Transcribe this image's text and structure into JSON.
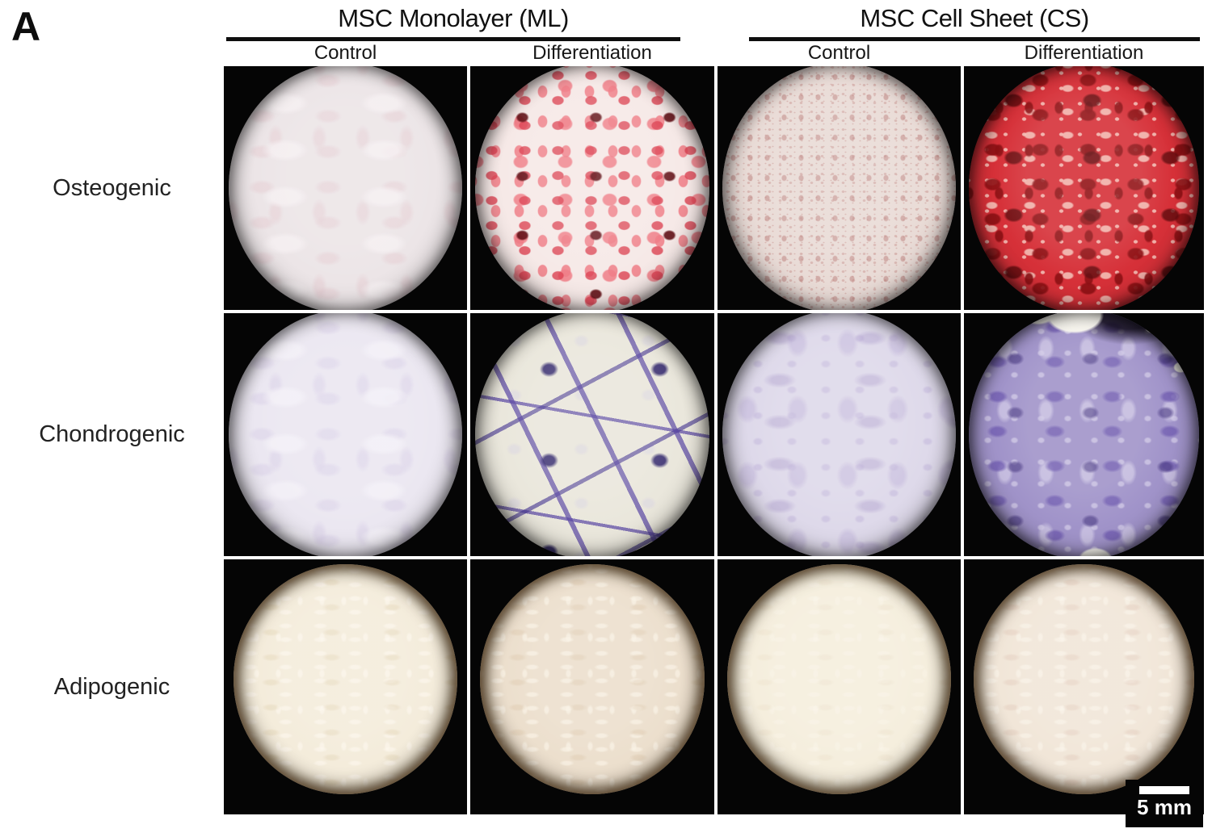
{
  "figure": {
    "panel_label": "A",
    "groups": [
      {
        "title": "MSC Monolayer (ML)",
        "sub": [
          "Control",
          "Differentiation"
        ]
      },
      {
        "title": "MSC Cell Sheet (CS)",
        "sub": [
          "Control",
          "Differentiation"
        ]
      }
    ],
    "rows": [
      {
        "label": "Osteogenic",
        "wells": [
          {
            "id": "osteogenic-ml-control",
            "colors": {
              "base": "#ece5e7",
              "t1": "#e4c9cf73",
              "t2": "#f6f0f2cc",
              "rim": "#00000073",
              "rim2": "#00000033"
            }
          },
          {
            "id": "osteogenic-ml-differentiation",
            "colors": {
              "base": "#f6e9e7",
              "t1": "#ef7c86d9",
              "t2": "#dc4151cc",
              "t3": "#611016e6",
              "rim": "#00000073",
              "rim2": "#00000033"
            }
          },
          {
            "id": "osteogenic-cs-control",
            "colors": {
              "base": "#e9dbd6",
              "t1": "#d2a9a4b3",
              "t2": "#bd837f8c",
              "rim": "#00000073",
              "rim2": "#00000033"
            }
          },
          {
            "id": "osteogenic-cs-differentiation",
            "colors": {
              "base": "#d63038",
              "t1": "#f3bcb4e6",
              "t2": "#8c1014e6",
              "t3": "#5e0a0dcc",
              "rim": "#00000080",
              "rim2": "#00000040"
            }
          }
        ]
      },
      {
        "label": "Chondrogenic",
        "wells": [
          {
            "id": "chondrogenic-ml-control",
            "colors": {
              "base": "#ebe7f1",
              "t1": "#d6cce673",
              "t2": "#f4f1f8cc",
              "rim": "#00000073",
              "rim2": "#00000033"
            }
          },
          {
            "id": "chondrogenic-ml-differentiation",
            "colors": {
              "base": "#eae7dc",
              "t1": "#d5cfe366",
              "t2": "#2b2068d9",
              "s1": "#5946a3b3",
              "s2": "#4434919e",
              "rim": "#00000073",
              "rim2": "#00000033"
            }
          },
          {
            "id": "chondrogenic-cs-control",
            "colors": {
              "base": "#ded9ea",
              "t1": "#c3b7db8c",
              "t2": "#a897c966",
              "white": "#f7f5ef",
              "rim": "#00000073",
              "rim2": "#00000033"
            }
          },
          {
            "id": "chondrogenic-cs-differentiation",
            "colors": {
              "base": "#a093c9",
              "t1": "#d4cde8b3",
              "t2": "#6a55adb3",
              "t3": "#47378199",
              "white": "#f8f6ef",
              "dark": "#161020d9",
              "rim": "#00000080",
              "rim2": "#00000040"
            }
          }
        ]
      },
      {
        "label": "Adipogenic",
        "wells": [
          {
            "id": "adipogenic-ml-control",
            "colors": {
              "base": "#f4ecdb",
              "t1": "#fdf8ee99",
              "t2": "#e2d2b366",
              "rim": "#201403cc",
              "rim2": "#6e4f2e8c"
            }
          },
          {
            "id": "adipogenic-ml-differentiation",
            "colors": {
              "base": "#ecdfcd",
              "t1": "#faf3e6b3",
              "t2": "#d9c3a659",
              "rim": "#201403cc",
              "rim2": "#6e4f2e8c"
            }
          },
          {
            "id": "adipogenic-cs-control",
            "colors": {
              "base": "#f5eedd",
              "t1": "#fdf9f04d",
              "t2": "#e6d8bd40",
              "rim": "#201403cc",
              "rim2": "#6e4f2e8c"
            }
          },
          {
            "id": "adipogenic-cs-differentiation",
            "colors": {
              "base": "#f1e6d8",
              "t1": "#fbf5eb99",
              "t2": "#ddc1b159",
              "rim": "#201403cc",
              "rim2": "#6e4f2e8c"
            }
          }
        ]
      }
    ],
    "scale_bar": {
      "label": "5 mm"
    }
  }
}
